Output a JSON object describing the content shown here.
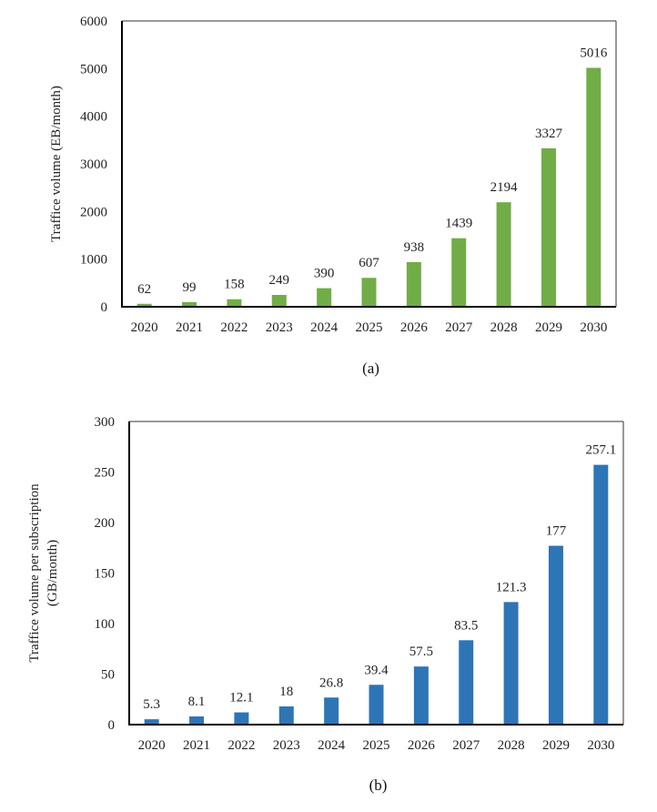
{
  "chart_data": [
    {
      "id": "a",
      "type": "bar",
      "title": "",
      "caption": "(a)",
      "xlabel": "",
      "ylabel": "Traffice volume (EB/month)",
      "ylabel_lines": [
        "Traffice volume (EB/month)"
      ],
      "categories": [
        "2020",
        "2021",
        "2022",
        "2023",
        "2024",
        "2025",
        "2026",
        "2027",
        "2028",
        "2029",
        "2030"
      ],
      "values": [
        62,
        99,
        158,
        249,
        390,
        607,
        938,
        1439,
        2194,
        3327,
        5016
      ],
      "data_labels": [
        "62",
        "99",
        "158",
        "249",
        "390",
        "607",
        "938",
        "1439",
        "2194",
        "3327",
        "5016"
      ],
      "ylim": [
        0,
        6000
      ],
      "yticks": [
        0,
        1000,
        2000,
        3000,
        4000,
        5000,
        6000
      ],
      "bar_color": "#70ad47",
      "grid": false,
      "legend": "none"
    },
    {
      "id": "b",
      "type": "bar",
      "title": "",
      "caption": "(b)",
      "xlabel": "",
      "ylabel": "Traffice volume per subscription (GB/month)",
      "ylabel_lines": [
        "Traffice volume per  subscription",
        "(GB/month)"
      ],
      "categories": [
        "2020",
        "2021",
        "2022",
        "2023",
        "2024",
        "2025",
        "2026",
        "2027",
        "2028",
        "2029",
        "2030"
      ],
      "values": [
        5.3,
        8.1,
        12.1,
        18,
        26.8,
        39.4,
        57.5,
        83.5,
        121.3,
        177,
        257.1
      ],
      "data_labels": [
        "5.3",
        "8.1",
        "12.1",
        "18",
        "26.8",
        "39.4",
        "57.5",
        "83.5",
        "121.3",
        "177",
        "257.1"
      ],
      "ylim": [
        0,
        300
      ],
      "yticks": [
        0,
        50,
        100,
        150,
        200,
        250,
        300
      ],
      "bar_color": "#2e75b6",
      "grid": false,
      "legend": "none"
    }
  ]
}
